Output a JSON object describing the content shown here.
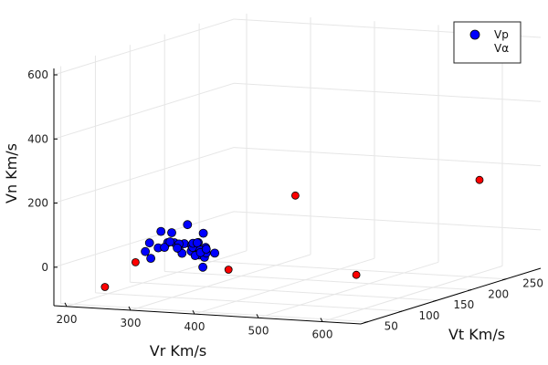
{
  "chart_data": {
    "type": "scatter",
    "title": "",
    "xlabel": "Vr Km/s",
    "ylabel": "Vt Km/s",
    "zlabel": "Vn Km/s",
    "xlim": [
      180,
      660
    ],
    "ylim": [
      40,
      300
    ],
    "zlim": [
      -120,
      620
    ],
    "x_ticks": [
      "200",
      "300",
      "400",
      "500",
      "600"
    ],
    "y_ticks": [
      "50",
      "100",
      "150",
      "200",
      "250"
    ],
    "z_ticks": [
      "0",
      "200",
      "400",
      "600"
    ],
    "grid": true,
    "legend": "top-right",
    "series": [
      {
        "name": "Vp",
        "color": "#0000ff",
        "points": [
          [
            243,
            120,
            30
          ],
          [
            250,
            130,
            60
          ],
          [
            256,
            140,
            50
          ],
          [
            262,
            115,
            20
          ],
          [
            266,
            125,
            30
          ],
          [
            270,
            150,
            70
          ],
          [
            275,
            112,
            25
          ],
          [
            278,
            130,
            10
          ],
          [
            282,
            120,
            35
          ],
          [
            286,
            110,
            45
          ],
          [
            288,
            140,
            0
          ],
          [
            292,
            125,
            30
          ],
          [
            296,
            118,
            5
          ],
          [
            298,
            130,
            22
          ],
          [
            300,
            110,
            40
          ],
          [
            303,
            135,
            28
          ],
          [
            306,
            122,
            10
          ],
          [
            308,
            100,
            35
          ],
          [
            312,
            128,
            -5
          ],
          [
            316,
            115,
            28
          ],
          [
            320,
            130,
            18
          ],
          [
            323,
            112,
            5
          ],
          [
            326,
            106,
            48
          ],
          [
            329,
            120,
            -5
          ],
          [
            333,
            110,
            25
          ],
          [
            336,
            116,
            12
          ],
          [
            340,
            104,
            22
          ],
          [
            345,
            120,
            10
          ],
          [
            348,
            100,
            -20
          ],
          [
            300,
            145,
            50
          ],
          [
            285,
            150,
            15
          ],
          [
            310,
            140,
            5
          ],
          [
            258,
            100,
            18
          ],
          [
            272,
            95,
            2
          ]
        ]
      },
      {
        "name": "Vα",
        "color": "#ff0000",
        "points": [
          [
            222,
            75,
            -80
          ],
          [
            232,
            110,
            -25
          ],
          [
            372,
            115,
            -35
          ],
          [
            390,
            195,
            145
          ],
          [
            575,
            112,
            -25
          ],
          [
            640,
            230,
            200
          ]
        ]
      }
    ]
  }
}
